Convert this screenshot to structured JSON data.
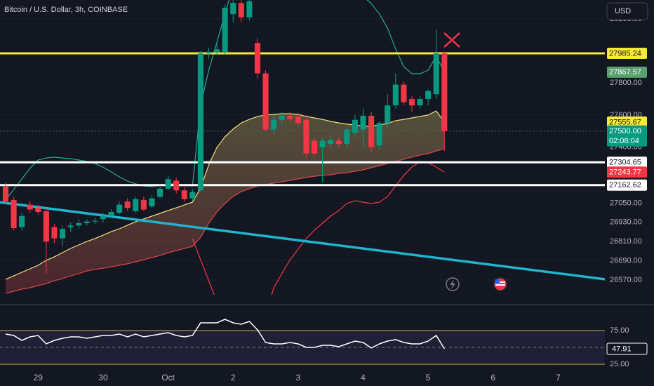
{
  "header": {
    "title": "Bitcoin / U.S. Dollar, 3h, COINBASE",
    "currency": "USD"
  },
  "chart_data": [
    {
      "type": "candlestick",
      "open": [
        27157,
        27070,
        26900,
        27040,
        27020,
        27000,
        26900,
        26830,
        26900,
        26910,
        26925,
        26935,
        26950,
        26970,
        26990,
        27060,
        27000,
        27070,
        27030,
        27090,
        27140,
        27190,
        27130,
        27080,
        27130,
        27985,
        27990,
        27990,
        28230,
        28300,
        28210,
        28050,
        27860,
        27510,
        27570,
        27595,
        27590,
        27570,
        27440,
        27400,
        27420,
        27440,
        27420,
        27490,
        27510,
        27595,
        27410,
        27550,
        27660,
        27790,
        27700,
        27660,
        27700,
        27730,
        27985
      ],
      "high": [
        27180,
        27090,
        26990,
        27060,
        27040,
        27020,
        26920,
        26910,
        26930,
        26950,
        26950,
        26960,
        26990,
        27010,
        27060,
        27080,
        27090,
        27090,
        27100,
        27160,
        27220,
        27210,
        27150,
        27140,
        28000,
        28020,
        28060,
        28290,
        28320,
        28320,
        28318,
        28080,
        27880,
        27600,
        27620,
        27620,
        27610,
        27600,
        27460,
        27460,
        27460,
        27460,
        27520,
        27600,
        27640,
        27620,
        27560,
        27730,
        27860,
        27810,
        27720,
        27720,
        27760,
        28134,
        27990
      ],
      "low": [
        27040,
        26880,
        26880,
        26990,
        26980,
        26610,
        26800,
        26780,
        26870,
        26890,
        26910,
        26920,
        26930,
        26960,
        26980,
        27000,
        26990,
        27000,
        27020,
        27080,
        27130,
        27110,
        27060,
        27060,
        27120,
        27950,
        27980,
        27980,
        28180,
        28180,
        28190,
        27830,
        27500,
        27480,
        27540,
        27550,
        27530,
        27330,
        27340,
        27180,
        27390,
        27400,
        27400,
        27460,
        27400,
        27370,
        27380,
        27520,
        27640,
        27660,
        27620,
        27640,
        27660,
        27700,
        27376
      ],
      "close": [
        27060,
        26894,
        26970,
        27010,
        26995,
        26810,
        26830,
        26890,
        26910,
        26925,
        26935,
        26940,
        26970,
        26995,
        27040,
        27020,
        27075,
        27010,
        27080,
        27140,
        27200,
        27130,
        27075,
        27120,
        27985,
        27995,
        28010,
        28270,
        28300,
        28210,
        28310,
        27860,
        27510,
        27570,
        27595,
        27575,
        27550,
        27360,
        27360,
        27440,
        27445,
        27420,
        27510,
        27570,
        27595,
        27400,
        27550,
        27660,
        27790,
        27680,
        27660,
        27700,
        27750,
        27985,
        27500
      ],
      "up_color": "#089981",
      "down_color": "#f23645",
      "indicators": [
        {
          "color": "#22ab94",
          "label_color": "#5a9f6e",
          "show_last_label": true,
          "values": [
            27070,
            27135,
            27201,
            27267,
            27319,
            27332,
            27337,
            27332,
            27328,
            27319,
            27310,
            27297,
            27275,
            27245,
            27214,
            27188,
            27170,
            27157,
            27153,
            27161,
            27170,
            27170,
            27161,
            27157,
            27661,
            27880,
            28055,
            28231,
            28406,
            28537,
            28625,
            28669,
            28669,
            28660,
            28647,
            28625,
            28603,
            28581,
            28559,
            28537,
            28515,
            28472,
            28428,
            28384,
            28340,
            28296,
            28231,
            28143,
            28012,
            27902,
            27858,
            27858,
            27880,
            27968,
            27867.57
          ]
        },
        {
          "color": "#f23645",
          "label_color": "#f23645",
          "show_last_label": true,
          "values": [
            null,
            null,
            null,
            null,
            null,
            null,
            null,
            null,
            null,
            null,
            null,
            null,
            null,
            null,
            null,
            null,
            null,
            null,
            null,
            null,
            null,
            null,
            null,
            26829,
            26697,
            26566,
            26434,
            26303,
            26171,
            26127,
            26127,
            26171,
            26347,
            26522,
            26610,
            26697,
            26763,
            26829,
            26881,
            26925,
            26969,
            27004,
            27048,
            27065,
            27056,
            27048,
            27056,
            27091,
            27157,
            27223,
            27275,
            27310,
            27302,
            27275,
            27243.77
          ]
        },
        {
          "color": "#f5e07a",
          "label_color": "#f7e93a",
          "show_last_label": true,
          "values": [
            26574,
            26596,
            26618,
            26640,
            26662,
            26693,
            26715,
            26741,
            26767,
            26789,
            26811,
            26829,
            26850,
            26872,
            26890,
            26912,
            26934,
            26951,
            26969,
            26986,
            27004,
            27021,
            27039,
            27056,
            27144,
            27289,
            27398,
            27464,
            27512,
            27551,
            27573,
            27591,
            27600,
            27604,
            27608,
            27608,
            27604,
            27591,
            27582,
            27573,
            27560,
            27551,
            27543,
            27538,
            27530,
            27530,
            27538,
            27547,
            27565,
            27573,
            27582,
            27591,
            27600,
            27626,
            27555.67
          ]
        },
        {
          "color": "#d9464a",
          "label_color": "#d9464a",
          "show_last_label": false,
          "values": [
            26487,
            26500,
            26513,
            26522,
            26535,
            26548,
            26566,
            26579,
            26596,
            26609,
            26627,
            26636,
            26644,
            26653,
            26662,
            26671,
            26684,
            26697,
            26710,
            26723,
            26741,
            26754,
            26767,
            26780,
            26837,
            26925,
            26995,
            27048,
            27091,
            27122,
            27140,
            27157,
            27166,
            27175,
            27183,
            27192,
            27201,
            27210,
            27218,
            27223,
            27227,
            27236,
            27240,
            27249,
            27258,
            27271,
            27284,
            27297,
            27310,
            27324,
            27337,
            27350,
            27359,
            27376,
            27389
          ]
        }
      ],
      "levels": [
        {
          "value": 27985.24,
          "color": "#f7e93a"
        },
        {
          "value": 27304.65,
          "color": "#ffffff"
        },
        {
          "value": 27162.62,
          "color": "#ffffff"
        }
      ],
      "trendline": {
        "x": [
          -0.69,
          73.75
        ],
        "y": [
          27055,
          26575
        ],
        "color": "#1fb5cc"
      },
      "last_price": {
        "value": 27500,
        "label": "27500.00"
      },
      "countdown": "02:08:04",
      "xlim": [
        -0.69,
        73.75
      ],
      "ylim": [
        26478,
        28318
      ],
      "grid": true,
      "yticks": [
        {
          "value": 26570,
          "label": "26570.00"
        },
        {
          "value": 26690,
          "label": "26690.00"
        },
        {
          "value": 26810,
          "label": "26810.00"
        },
        {
          "value": 26930,
          "label": "26930.00"
        },
        {
          "value": 27050,
          "label": "27050.00"
        },
        {
          "value": 27400,
          "label": "27400.00"
        },
        {
          "value": 27600,
          "label": "27600.00"
        },
        {
          "value": 27800,
          "label": "27800.00"
        },
        {
          "value": 28200,
          "label": "28200.00"
        }
      ],
      "xticks": [
        {
          "value": 4,
          "label": "29"
        },
        {
          "value": 12,
          "label": "30"
        },
        {
          "value": 20,
          "label": "Oct"
        },
        {
          "value": 28,
          "label": "2"
        },
        {
          "value": 36,
          "label": "3"
        },
        {
          "value": 44,
          "label": "4"
        },
        {
          "value": 52,
          "label": "5"
        },
        {
          "value": 60,
          "label": "6"
        },
        {
          "value": 68,
          "label": "7"
        }
      ]
    },
    {
      "type": "line",
      "color": "#ffffff",
      "values": [
        69.8,
        67.7,
        60.4,
        65.6,
        67.7,
        55.2,
        60.4,
        63.5,
        65.6,
        65.6,
        63.5,
        65.6,
        67.7,
        67.7,
        69.8,
        65.6,
        69.8,
        65.6,
        67.7,
        69.8,
        71.9,
        67.7,
        65.6,
        67.7,
        86.5,
        86.5,
        86.5,
        91.7,
        86.5,
        84.4,
        88.5,
        76.0,
        57.3,
        55.2,
        55.2,
        57.3,
        55.2,
        50.0,
        50.0,
        53.1,
        53.1,
        51.0,
        55.2,
        59.4,
        57.3,
        49.0,
        55.2,
        59.4,
        61.5,
        57.3,
        55.2,
        55.2,
        59.4,
        67.7,
        47.91
      ],
      "ylim": [
        13.5,
        107.3
      ],
      "yticks": [
        {
          "value": 75,
          "label": "75.00"
        },
        {
          "value": 25,
          "label": "25.00"
        }
      ],
      "midline": 50,
      "band_color": "#7e57c2",
      "bound_color": "#c9b44a"
    }
  ]
}
